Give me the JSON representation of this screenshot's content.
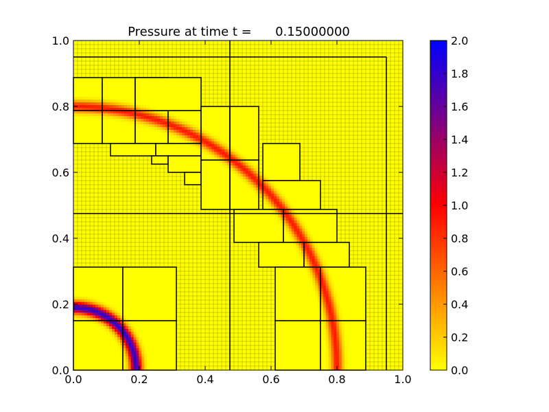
{
  "chart_data": {
    "type": "heatmap",
    "title": "Pressure at time t =      0.15000000",
    "xlabel": "",
    "ylabel": "",
    "xlim": [
      0.0,
      1.0
    ],
    "ylim": [
      0.0,
      1.0
    ],
    "x_ticks": [
      "0.0",
      "0.2",
      "0.4",
      "0.6",
      "0.8",
      "1.0"
    ],
    "y_ticks": [
      "0.0",
      "0.2",
      "0.4",
      "0.6",
      "0.8",
      "1.0"
    ],
    "colorbar": {
      "range": [
        0.0,
        2.0
      ],
      "ticks": [
        "0.0",
        "0.2",
        "0.4",
        "0.6",
        "0.8",
        "1.0",
        "1.2",
        "1.4",
        "1.6",
        "1.8",
        "2.0"
      ],
      "colors": [
        "#ffff00",
        "#ff0000",
        "#0000ff"
      ]
    },
    "fine_grid_spacing": 0.0125,
    "coarse_patch_lines": {
      "x": [
        0.475,
        0.95
      ],
      "y": [
        0.475,
        0.95
      ]
    },
    "pressure_rings": [
      {
        "center": [
          0.0,
          0.0
        ],
        "radius": 0.19,
        "width": 0.045,
        "peak_pressure": 1.8
      },
      {
        "center": [
          0.0,
          0.0
        ],
        "radius": 0.8,
        "width": 0.042,
        "peak_pressure": 0.9
      }
    ],
    "refined_patches": [
      [
        0.0,
        0.0,
        0.15,
        0.15
      ],
      [
        0.15,
        0.0,
        0.3125,
        0.15
      ],
      [
        0.0,
        0.15,
        0.15,
        0.3125
      ],
      [
        0.15,
        0.15,
        0.3125,
        0.3125
      ],
      [
        0.0,
        0.6875,
        0.0875,
        0.7875
      ],
      [
        0.0875,
        0.6875,
        0.1875,
        0.7875
      ],
      [
        0.1875,
        0.6875,
        0.2875,
        0.7875
      ],
      [
        0.2875,
        0.6875,
        0.3875,
        0.7875
      ],
      [
        0.0,
        0.7875,
        0.0875,
        0.8875
      ],
      [
        0.0875,
        0.7875,
        0.1875,
        0.8875
      ],
      [
        0.1875,
        0.7875,
        0.2875,
        0.8875
      ],
      [
        0.2875,
        0.7875,
        0.3875,
        0.7875
      ],
      [
        0.1875,
        0.7875,
        0.3875,
        0.8875
      ],
      [
        0.1125,
        0.65,
        0.25,
        0.6875
      ],
      [
        0.25,
        0.65,
        0.3875,
        0.6875
      ],
      [
        0.2375,
        0.625,
        0.2875,
        0.65
      ],
      [
        0.2875,
        0.6,
        0.3875,
        0.65
      ],
      [
        0.3375,
        0.5625,
        0.3875,
        0.6
      ],
      [
        0.3875,
        0.4875,
        0.475,
        0.6375
      ],
      [
        0.475,
        0.4875,
        0.5625,
        0.6375
      ],
      [
        0.3875,
        0.6375,
        0.475,
        0.8
      ],
      [
        0.475,
        0.6375,
        0.5625,
        0.8
      ],
      [
        0.575,
        0.575,
        0.6875,
        0.6875
      ],
      [
        0.575,
        0.4875,
        0.75,
        0.575
      ],
      [
        0.4875,
        0.3875,
        0.6375,
        0.4875
      ],
      [
        0.6375,
        0.3875,
        0.8,
        0.4875
      ],
      [
        0.5625,
        0.3125,
        0.7,
        0.3875
      ],
      [
        0.7,
        0.3125,
        0.8375,
        0.3875
      ],
      [
        0.6125,
        0.0,
        0.75,
        0.15
      ],
      [
        0.75,
        0.0,
        0.8875,
        0.15
      ],
      [
        0.6125,
        0.15,
        0.75,
        0.3125
      ],
      [
        0.75,
        0.15,
        0.8875,
        0.3125
      ]
    ]
  }
}
